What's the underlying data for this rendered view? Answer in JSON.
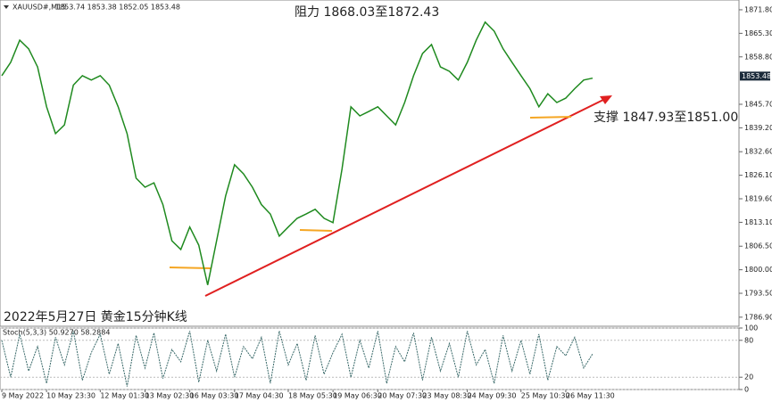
{
  "chart_data": [
    {
      "type": "line",
      "title": "XAUUSD#,M15",
      "ohlc": "1853.74 1853.38 1852.05 1853.48",
      "categories": [
        "9 May 2022",
        null,
        null,
        null,
        null,
        "10 May 23:30",
        null,
        null,
        null,
        null,
        null,
        "12 May 01:30",
        null,
        null,
        null,
        null,
        "13 May 02:30",
        null,
        null,
        null,
        null,
        "16 May 03:30",
        null,
        null,
        null,
        null,
        "17 May 04:30",
        null,
        null,
        null,
        null,
        null,
        "18 May 05:30",
        null,
        null,
        null,
        null,
        "19 May 06:30",
        null,
        null,
        null,
        null,
        "20 May 07:30",
        null,
        null,
        null,
        null,
        "23 May 08:30",
        null,
        null,
        null,
        null,
        "24 May 09:30",
        null,
        null,
        null,
        null,
        null,
        "25 May 10:30",
        null,
        null,
        null,
        null,
        "26 May 11:30",
        null,
        null,
        null
      ],
      "values": [
        1853.6,
        1857.3,
        1863.4,
        1861,
        1856,
        1845,
        1837.6,
        1840,
        1851,
        1853.6,
        1852.4,
        1853.6,
        1851,
        1845,
        1837.6,
        1825.3,
        1822.8,
        1824,
        1818,
        1808,
        1805.6,
        1811.8,
        1806.8,
        1795.8,
        1808,
        1820.4,
        1829,
        1826.5,
        1822.8,
        1818,
        1815.4,
        1809.3,
        1811.8,
        1814.2,
        1815.4,
        1816.7,
        1814.2,
        1813,
        1827.8,
        1845,
        1842.5,
        1843.7,
        1845,
        1842.5,
        1840,
        1846.2,
        1853.6,
        1859.7,
        1862.2,
        1856,
        1854.8,
        1852.4,
        1857.3,
        1863.4,
        1868.4,
        1865.9,
        1861,
        1857.3,
        1853.6,
        1850,
        1845,
        1848.6,
        1846.2,
        1847.4,
        1850,
        1852.4,
        1852.9
      ],
      "color": "#1f8a1f",
      "ylim": [
        1784.4,
        1874.5
      ],
      "yticks": [
        {
          "value": 1871.8,
          "label": "1871.80"
        },
        {
          "value": 1865.3,
          "label": "1865.30"
        },
        {
          "value": 1858.8,
          "label": "1858.80"
        },
        {
          "value": 1845.7,
          "label": "1845.70"
        },
        {
          "value": 1839.2,
          "label": "1839.20"
        },
        {
          "value": 1832.6,
          "label": "1832.60"
        },
        {
          "value": 1826.1,
          "label": "1826.10"
        },
        {
          "value": 1819.6,
          "label": "1819.60"
        },
        {
          "value": 1813.1,
          "label": "1813.10"
        },
        {
          "value": 1806.5,
          "label": "1806.50"
        },
        {
          "value": 1800,
          "label": "1800.00"
        },
        {
          "value": 1793.5,
          "label": "1793.50"
        },
        {
          "value": 1786.9,
          "label": "1786.90"
        }
      ],
      "last_price": 1853.48,
      "annotations": [
        "阻力 1868.03至1872.43",
        "支撑 1847.93至1851.00",
        "2022年5月27日 黄金15分钟K线"
      ]
    },
    {
      "type": "line",
      "title": "Stoch(5,3,3) 50.9270 58.2884",
      "values": [
        80,
        20,
        90,
        30,
        70,
        10,
        85,
        40,
        95,
        15,
        60,
        90,
        25,
        75,
        5,
        88,
        35,
        92,
        18,
        65,
        45,
        95,
        12,
        80,
        30,
        90,
        20,
        70,
        50,
        85,
        10,
        95,
        40,
        75,
        15,
        88,
        25,
        60,
        90,
        20,
        80,
        35,
        95,
        10,
        70,
        45,
        92,
        15,
        85,
        30,
        75,
        20,
        95,
        40,
        65,
        10,
        88,
        30,
        80,
        25,
        90,
        15,
        70,
        55,
        85,
        35,
        58
      ],
      "color": "#3a6a6a",
      "ylim": [
        0,
        100
      ],
      "yticks": [
        0,
        20,
        80,
        100
      ]
    }
  ]
}
